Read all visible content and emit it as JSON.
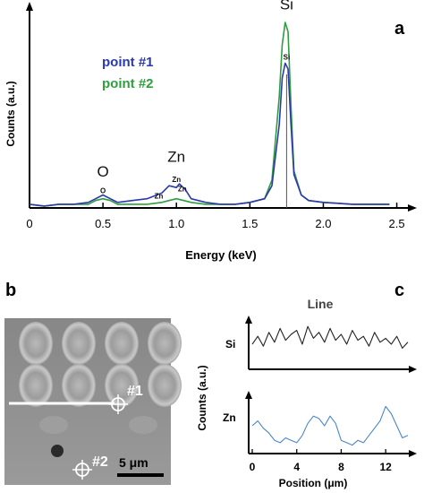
{
  "chart_data": [
    {
      "panel": "a",
      "type": "line",
      "title": "",
      "xlabel": "Energy (keV)",
      "ylabel": "Counts (a.u.)",
      "xlim": [
        0,
        2.6
      ],
      "ylim": [
        0,
        1.0
      ],
      "xticks": [
        0,
        0.5,
        1.0,
        1.5,
        2.0,
        2.5
      ],
      "xtick_labels": [
        "0",
        "0.5",
        "1.0",
        "1.5",
        "2.0",
        "2.5"
      ],
      "legend": [
        "point #1",
        "point #2"
      ],
      "series": [
        {
          "name": "point #1",
          "color": "#2b3aa8",
          "x": [
            0.0,
            0.1,
            0.2,
            0.3,
            0.4,
            0.45,
            0.5,
            0.55,
            0.6,
            0.7,
            0.8,
            0.9,
            0.95,
            1.0,
            1.02,
            1.06,
            1.1,
            1.2,
            1.3,
            1.4,
            1.5,
            1.6,
            1.65,
            1.7,
            1.72,
            1.74,
            1.76,
            1.78,
            1.8,
            1.85,
            1.9,
            2.0,
            2.2,
            2.45
          ],
          "y": [
            0.02,
            0.01,
            0.02,
            0.02,
            0.03,
            0.05,
            0.07,
            0.05,
            0.03,
            0.04,
            0.05,
            0.08,
            0.12,
            0.11,
            0.13,
            0.1,
            0.05,
            0.03,
            0.02,
            0.02,
            0.03,
            0.05,
            0.12,
            0.45,
            0.7,
            0.78,
            0.75,
            0.45,
            0.18,
            0.07,
            0.04,
            0.03,
            0.02,
            0.02
          ]
        },
        {
          "name": "point #2",
          "color": "#2e9e3e",
          "x": [
            0.0,
            0.1,
            0.2,
            0.3,
            0.4,
            0.45,
            0.5,
            0.55,
            0.6,
            0.7,
            0.8,
            0.9,
            0.95,
            1.0,
            1.05,
            1.1,
            1.2,
            1.3,
            1.4,
            1.5,
            1.6,
            1.65,
            1.7,
            1.72,
            1.74,
            1.76,
            1.78,
            1.8,
            1.85,
            1.9,
            2.0,
            2.2,
            2.45
          ],
          "y": [
            0.02,
            0.01,
            0.02,
            0.02,
            0.02,
            0.04,
            0.05,
            0.04,
            0.02,
            0.02,
            0.02,
            0.03,
            0.04,
            0.05,
            0.04,
            0.03,
            0.02,
            0.02,
            0.02,
            0.03,
            0.05,
            0.15,
            0.6,
            0.88,
            1.0,
            0.95,
            0.55,
            0.2,
            0.07,
            0.04,
            0.03,
            0.02,
            0.02
          ]
        }
      ],
      "annotations": [
        {
          "text": "Si",
          "x": 1.75,
          "y": 1.07,
          "size": "large"
        },
        {
          "text": "Zn",
          "x": 1.0,
          "y": 0.25,
          "size": "large"
        },
        {
          "text": "O",
          "x": 0.5,
          "y": 0.17,
          "size": "large"
        },
        {
          "text": "Si",
          "x": 1.75,
          "y": 0.8,
          "size": "small"
        },
        {
          "text": "Zn",
          "x": 1.0,
          "y": 0.14,
          "size": "small"
        },
        {
          "text": "Zn",
          "x": 1.04,
          "y": 0.09,
          "size": "small"
        },
        {
          "text": "Zn",
          "x": 0.88,
          "y": 0.05,
          "size": "small"
        },
        {
          "text": "O",
          "x": 0.5,
          "y": 0.08,
          "size": "small"
        }
      ],
      "marker_x": 1.75,
      "panel_label": "a"
    },
    {
      "panel": "b",
      "type": "image",
      "scale_bar": "5 μm",
      "point_labels": [
        "#1",
        "#2"
      ],
      "panel_label": "b"
    },
    {
      "panel": "c",
      "type": "line",
      "title": "Line",
      "xlabel": "Position (μm)",
      "ylabel": "Counts (a.u.)",
      "xlim": [
        0,
        14
      ],
      "xticks": [
        0,
        4,
        8,
        12
      ],
      "xtick_labels": [
        "0",
        "4",
        "8",
        "12"
      ],
      "panel_label": "c",
      "series": [
        {
          "name": "Si",
          "color": "#222222",
          "x": [
            0,
            0.5,
            1,
            1.5,
            2,
            2.5,
            3,
            3.5,
            4,
            4.5,
            5,
            5.5,
            6,
            6.5,
            7,
            7.5,
            8,
            8.5,
            9,
            9.5,
            10,
            10.5,
            11,
            11.5,
            12,
            12.5,
            13,
            13.5,
            14
          ],
          "y": [
            0.5,
            0.7,
            0.45,
            0.8,
            0.55,
            0.9,
            0.6,
            0.75,
            0.85,
            0.5,
            0.95,
            0.65,
            0.8,
            0.55,
            0.9,
            0.6,
            0.75,
            0.5,
            0.85,
            0.6,
            0.7,
            0.45,
            0.8,
            0.55,
            0.65,
            0.5,
            0.7,
            0.4,
            0.55
          ]
        },
        {
          "name": "Zn",
          "color": "#4a86c8",
          "x": [
            0,
            0.5,
            1,
            1.5,
            2,
            2.5,
            3,
            3.5,
            4,
            4.5,
            5,
            5.5,
            6,
            6.5,
            7,
            7.5,
            8,
            8.5,
            9,
            9.5,
            10,
            10.5,
            11,
            11.5,
            12,
            12.5,
            13,
            13.5,
            14
          ],
          "y": [
            0.5,
            0.6,
            0.45,
            0.35,
            0.2,
            0.15,
            0.25,
            0.2,
            0.15,
            0.3,
            0.55,
            0.7,
            0.65,
            0.5,
            0.7,
            0.55,
            0.2,
            0.15,
            0.1,
            0.2,
            0.15,
            0.3,
            0.45,
            0.6,
            0.9,
            0.75,
            0.5,
            0.25,
            0.3
          ]
        }
      ]
    }
  ]
}
